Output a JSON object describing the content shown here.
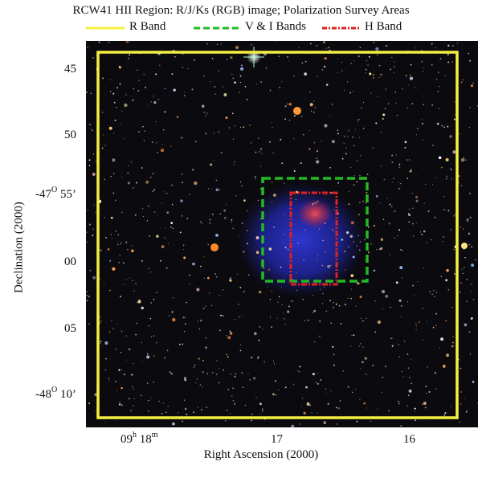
{
  "header": {
    "title": "RCW41 HII Region: R/J/Ks (RGB) image; Polarization Survey Areas"
  },
  "legend": [
    {
      "label": "R Band",
      "color": "#f5f040",
      "style": "solid"
    },
    {
      "label": "V & I Bands",
      "color": "#22bb22",
      "style": "dashed"
    },
    {
      "label": "H Band",
      "color": "#dd2222",
      "style": "dash-dot"
    }
  ],
  "axes": {
    "xlabel": "Right Ascension (2000)",
    "ylabel": "Declination (2000)",
    "xticks": [
      {
        "main": "09",
        "sup1": "h",
        "mid": " 18",
        "sup2": "m"
      },
      {
        "main": "17",
        "sup1": "",
        "mid": "",
        "sup2": ""
      },
      {
        "main": "16",
        "sup1": "",
        "mid": "",
        "sup2": ""
      }
    ],
    "yticks": [
      {
        "pre": "45",
        "sup": "",
        "post": ""
      },
      {
        "pre": "50",
        "sup": "",
        "post": ""
      },
      {
        "pre": "-47",
        "sup": "O",
        "post": " 55’"
      },
      {
        "pre": "00",
        "sup": "",
        "post": ""
      },
      {
        "pre": "05",
        "sup": "",
        "post": ""
      },
      {
        "pre": "-48",
        "sup": "O",
        "post": " 10’"
      }
    ]
  },
  "colors": {
    "sky_background": "#0b0a0e",
    "nebula": "#2830c8",
    "r_band": "#f5f040",
    "vi_bands": "#22bb22",
    "h_band": "#dd2222"
  }
}
